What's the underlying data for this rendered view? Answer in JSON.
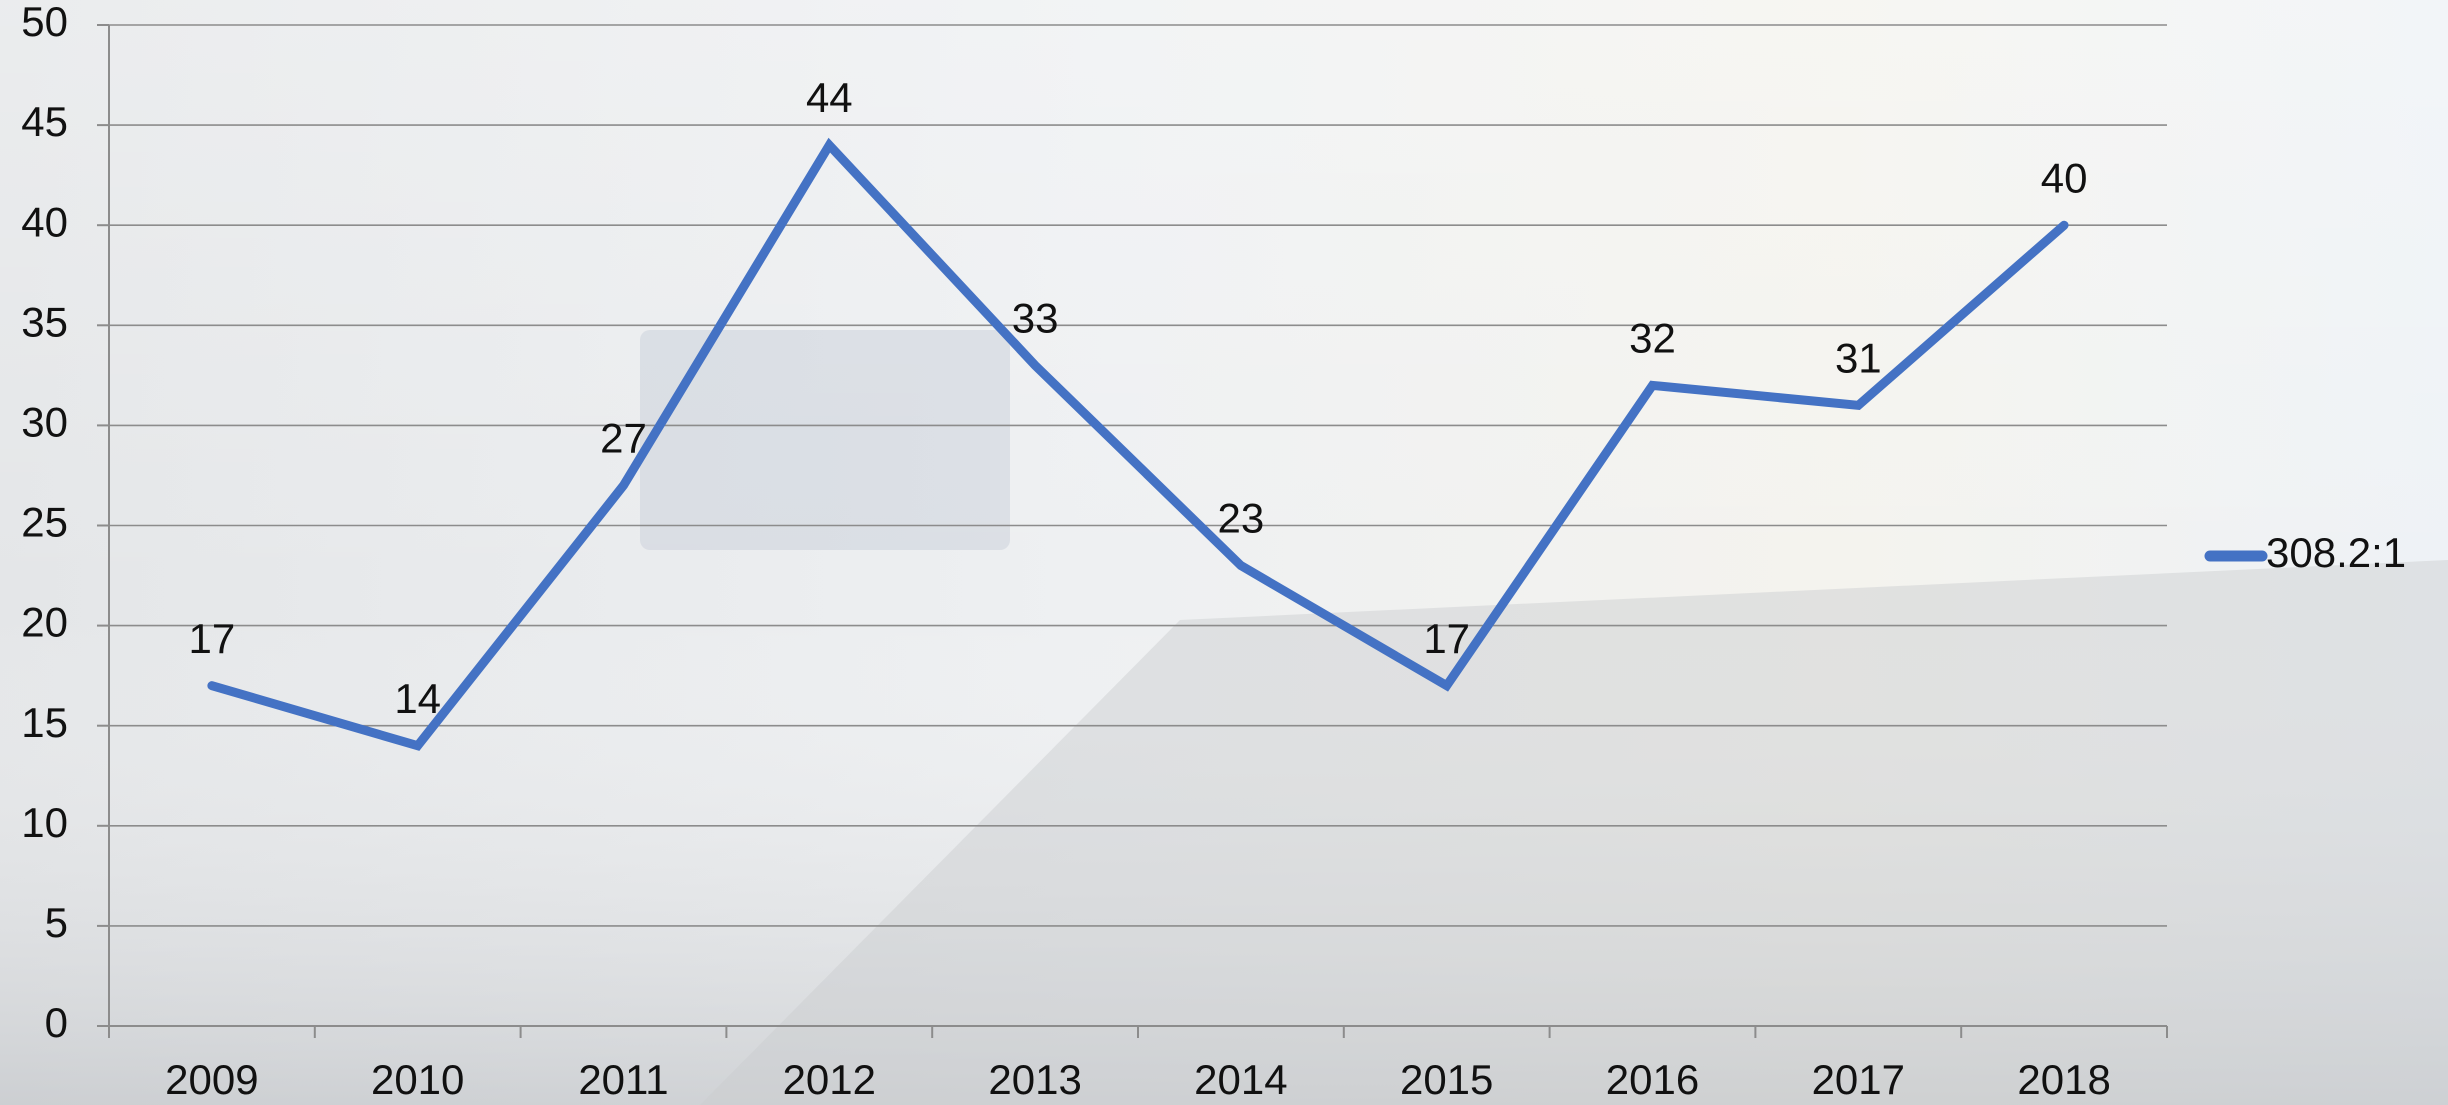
{
  "chart_data": {
    "type": "line",
    "categories": [
      "2009",
      "2010",
      "2011",
      "2012",
      "2013",
      "2014",
      "2015",
      "2016",
      "2017",
      "2018"
    ],
    "series": [
      {
        "name": "308.2:1",
        "color": "#4472c4",
        "values": [
          17,
          14,
          27,
          44,
          33,
          23,
          17,
          32,
          31,
          40
        ]
      }
    ],
    "ylim": [
      0,
      50
    ],
    "yticks": [
      0,
      5,
      10,
      15,
      20,
      25,
      30,
      35,
      40,
      45,
      50
    ],
    "grid": true,
    "legend": "right",
    "data_labels": true
  }
}
